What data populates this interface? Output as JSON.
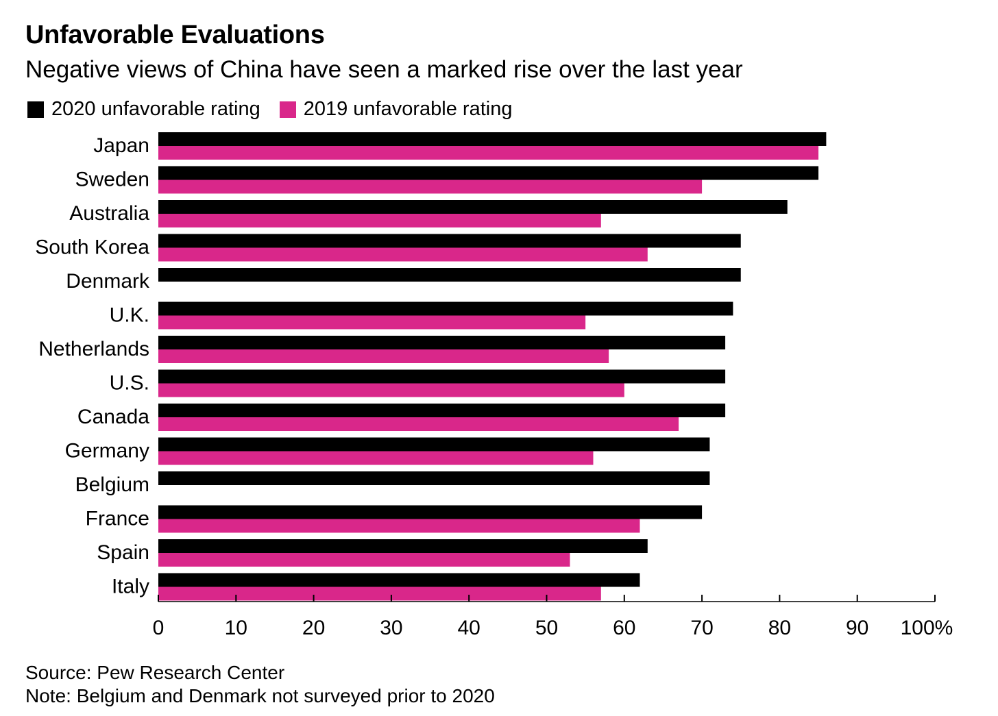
{
  "chart_data": {
    "type": "bar",
    "orientation": "horizontal",
    "title": "Unfavorable Evaluations",
    "subtitle": "Negative views of China have seen a marked rise over the last year",
    "categories": [
      "Japan",
      "Sweden",
      "Australia",
      "South Korea",
      "Denmark",
      "U.K.",
      "Netherlands",
      "U.S.",
      "Canada",
      "Germany",
      "Belgium",
      "France",
      "Spain",
      "Italy"
    ],
    "series": [
      {
        "name": "2020 unfavorable rating",
        "color": "#000000",
        "values": [
          86,
          85,
          81,
          75,
          75,
          74,
          73,
          73,
          73,
          71,
          71,
          70,
          63,
          62
        ]
      },
      {
        "name": "2019 unfavorable rating",
        "color": "#d9278a",
        "values": [
          85,
          70,
          57,
          63,
          null,
          55,
          58,
          60,
          67,
          56,
          null,
          62,
          53,
          57
        ]
      }
    ],
    "xlim": [
      0,
      100
    ],
    "xticks": [
      0,
      10,
      20,
      30,
      40,
      50,
      60,
      70,
      80,
      90,
      100
    ],
    "xtick_labels": [
      "0",
      "10",
      "20",
      "30",
      "40",
      "50",
      "60",
      "70",
      "80",
      "90",
      "100%"
    ],
    "xlabel": "",
    "ylabel": "",
    "grid": false,
    "legend_position": "top-left"
  },
  "footer": {
    "source": "Source: Pew Research Center",
    "note": "Note: Belgium and Denmark not surveyed prior to 2020"
  }
}
